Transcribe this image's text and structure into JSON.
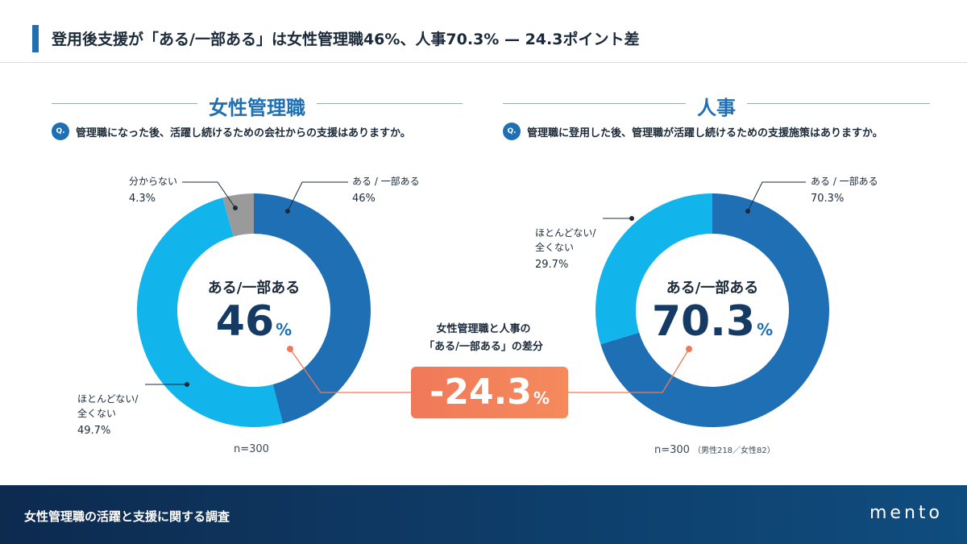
{
  "header": {
    "title": "登用後支援が「ある/一部ある」は女性管理職46%、人事70.3% — 24.3ポイント差"
  },
  "colors": {
    "dark_blue": "#1f6fb5",
    "light_blue": "#12b4ec",
    "gray": "#9a9a9a",
    "accent": "#f0795a"
  },
  "chart_data": [
    {
      "type": "pie",
      "title": "女性管理職",
      "question_badge": "Q.",
      "question": "管理職になった後、活躍し続けるための会社からの支援はありますか。",
      "categories": [
        "ある / 一部ある",
        "ほとんどない/\n全くない",
        "分からない"
      ],
      "values": [
        46,
        49.7,
        4.3
      ],
      "value_labels": [
        "46%",
        "49.7%",
        "4.3%"
      ],
      "center_label": "ある/一部ある",
      "center_value": "46",
      "center_unit": "%",
      "n": "n=300"
    },
    {
      "type": "pie",
      "title": "人事",
      "question_badge": "Q.",
      "question": "管理職に登用した後、管理職が活躍し続けるための支援施策はありますか。",
      "categories": [
        "ある / 一部ある",
        "ほとんどない/\n全くない"
      ],
      "values": [
        70.3,
        29.7
      ],
      "value_labels": [
        "70.3%",
        "29.7%"
      ],
      "center_label": "ある/一部ある",
      "center_value": "70.3",
      "center_unit": "%",
      "n": "n=300",
      "n_note": "（男性218／女性82）"
    }
  ],
  "difference": {
    "caption_line1": "女性管理職と人事の",
    "caption_line2": "「ある/一部ある」の差分",
    "value": "-24.3",
    "unit": "%"
  },
  "footer": {
    "title": "女性管理職の活躍と支援に関する調査",
    "logo": "mento"
  }
}
